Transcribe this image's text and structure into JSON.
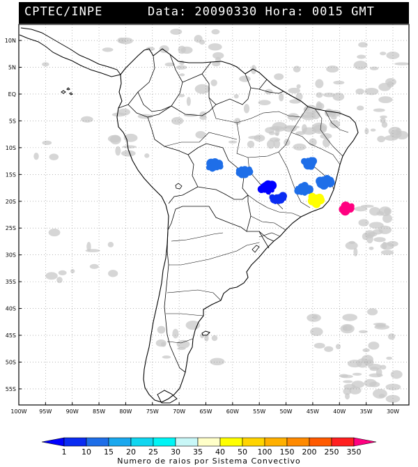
{
  "header": {
    "source": "CPTEC/INPE",
    "date_label": "Data:",
    "date": "20090330",
    "hour_label": "Hora:",
    "hour": "0015",
    "tz": "GMT"
  },
  "lat_labels": [
    "10N",
    "5N",
    "EQ",
    "5S",
    "10S",
    "15S",
    "20S",
    "25S",
    "30S",
    "35S",
    "40S",
    "45S",
    "50S",
    "55S"
  ],
  "lon_labels": [
    "100W",
    "95W",
    "90W",
    "85W",
    "80W",
    "75W",
    "70W",
    "65W",
    "60W",
    "55W",
    "50W",
    "45W",
    "40W",
    "35W",
    "30W"
  ],
  "colorbar": {
    "title": "Numero de raios por Sistema Convectivo",
    "levels": [
      "1",
      "10",
      "15",
      "20",
      "25",
      "30",
      "35",
      "40",
      "50",
      "100",
      "150",
      "200",
      "250",
      "350"
    ],
    "colors": [
      "#0000ff",
      "#0a2cf2",
      "#1e6ee8",
      "#1aa8ee",
      "#10d6f0",
      "#00f5f5",
      "#c8f7f7",
      "#ffffc8",
      "#ffff00",
      "#ffd400",
      "#ffb000",
      "#ff8a00",
      "#ff5a00",
      "#ff2020",
      "#ff0080"
    ]
  },
  "convective_systems": [
    {
      "lon": -63.5,
      "lat": -13.5,
      "color": "#1e6ee8"
    },
    {
      "lon": -57.8,
      "lat": -14.5,
      "color": "#1e6ee8"
    },
    {
      "lon": -45.5,
      "lat": -12.8,
      "color": "#1e6ee8"
    },
    {
      "lon": -53.5,
      "lat": -17.5,
      "color": "#0000ff"
    },
    {
      "lon": -51.5,
      "lat": -19.5,
      "color": "#0a2cf2"
    },
    {
      "lon": -46.7,
      "lat": -17.8,
      "color": "#1e6ee8"
    },
    {
      "lon": -42.5,
      "lat": -16.5,
      "color": "#1e6ee8"
    },
    {
      "lon": -44.5,
      "lat": -19.8,
      "color": "#ffff00"
    },
    {
      "lon": -38.5,
      "lat": -21.3,
      "color": "#ff0080"
    }
  ]
}
